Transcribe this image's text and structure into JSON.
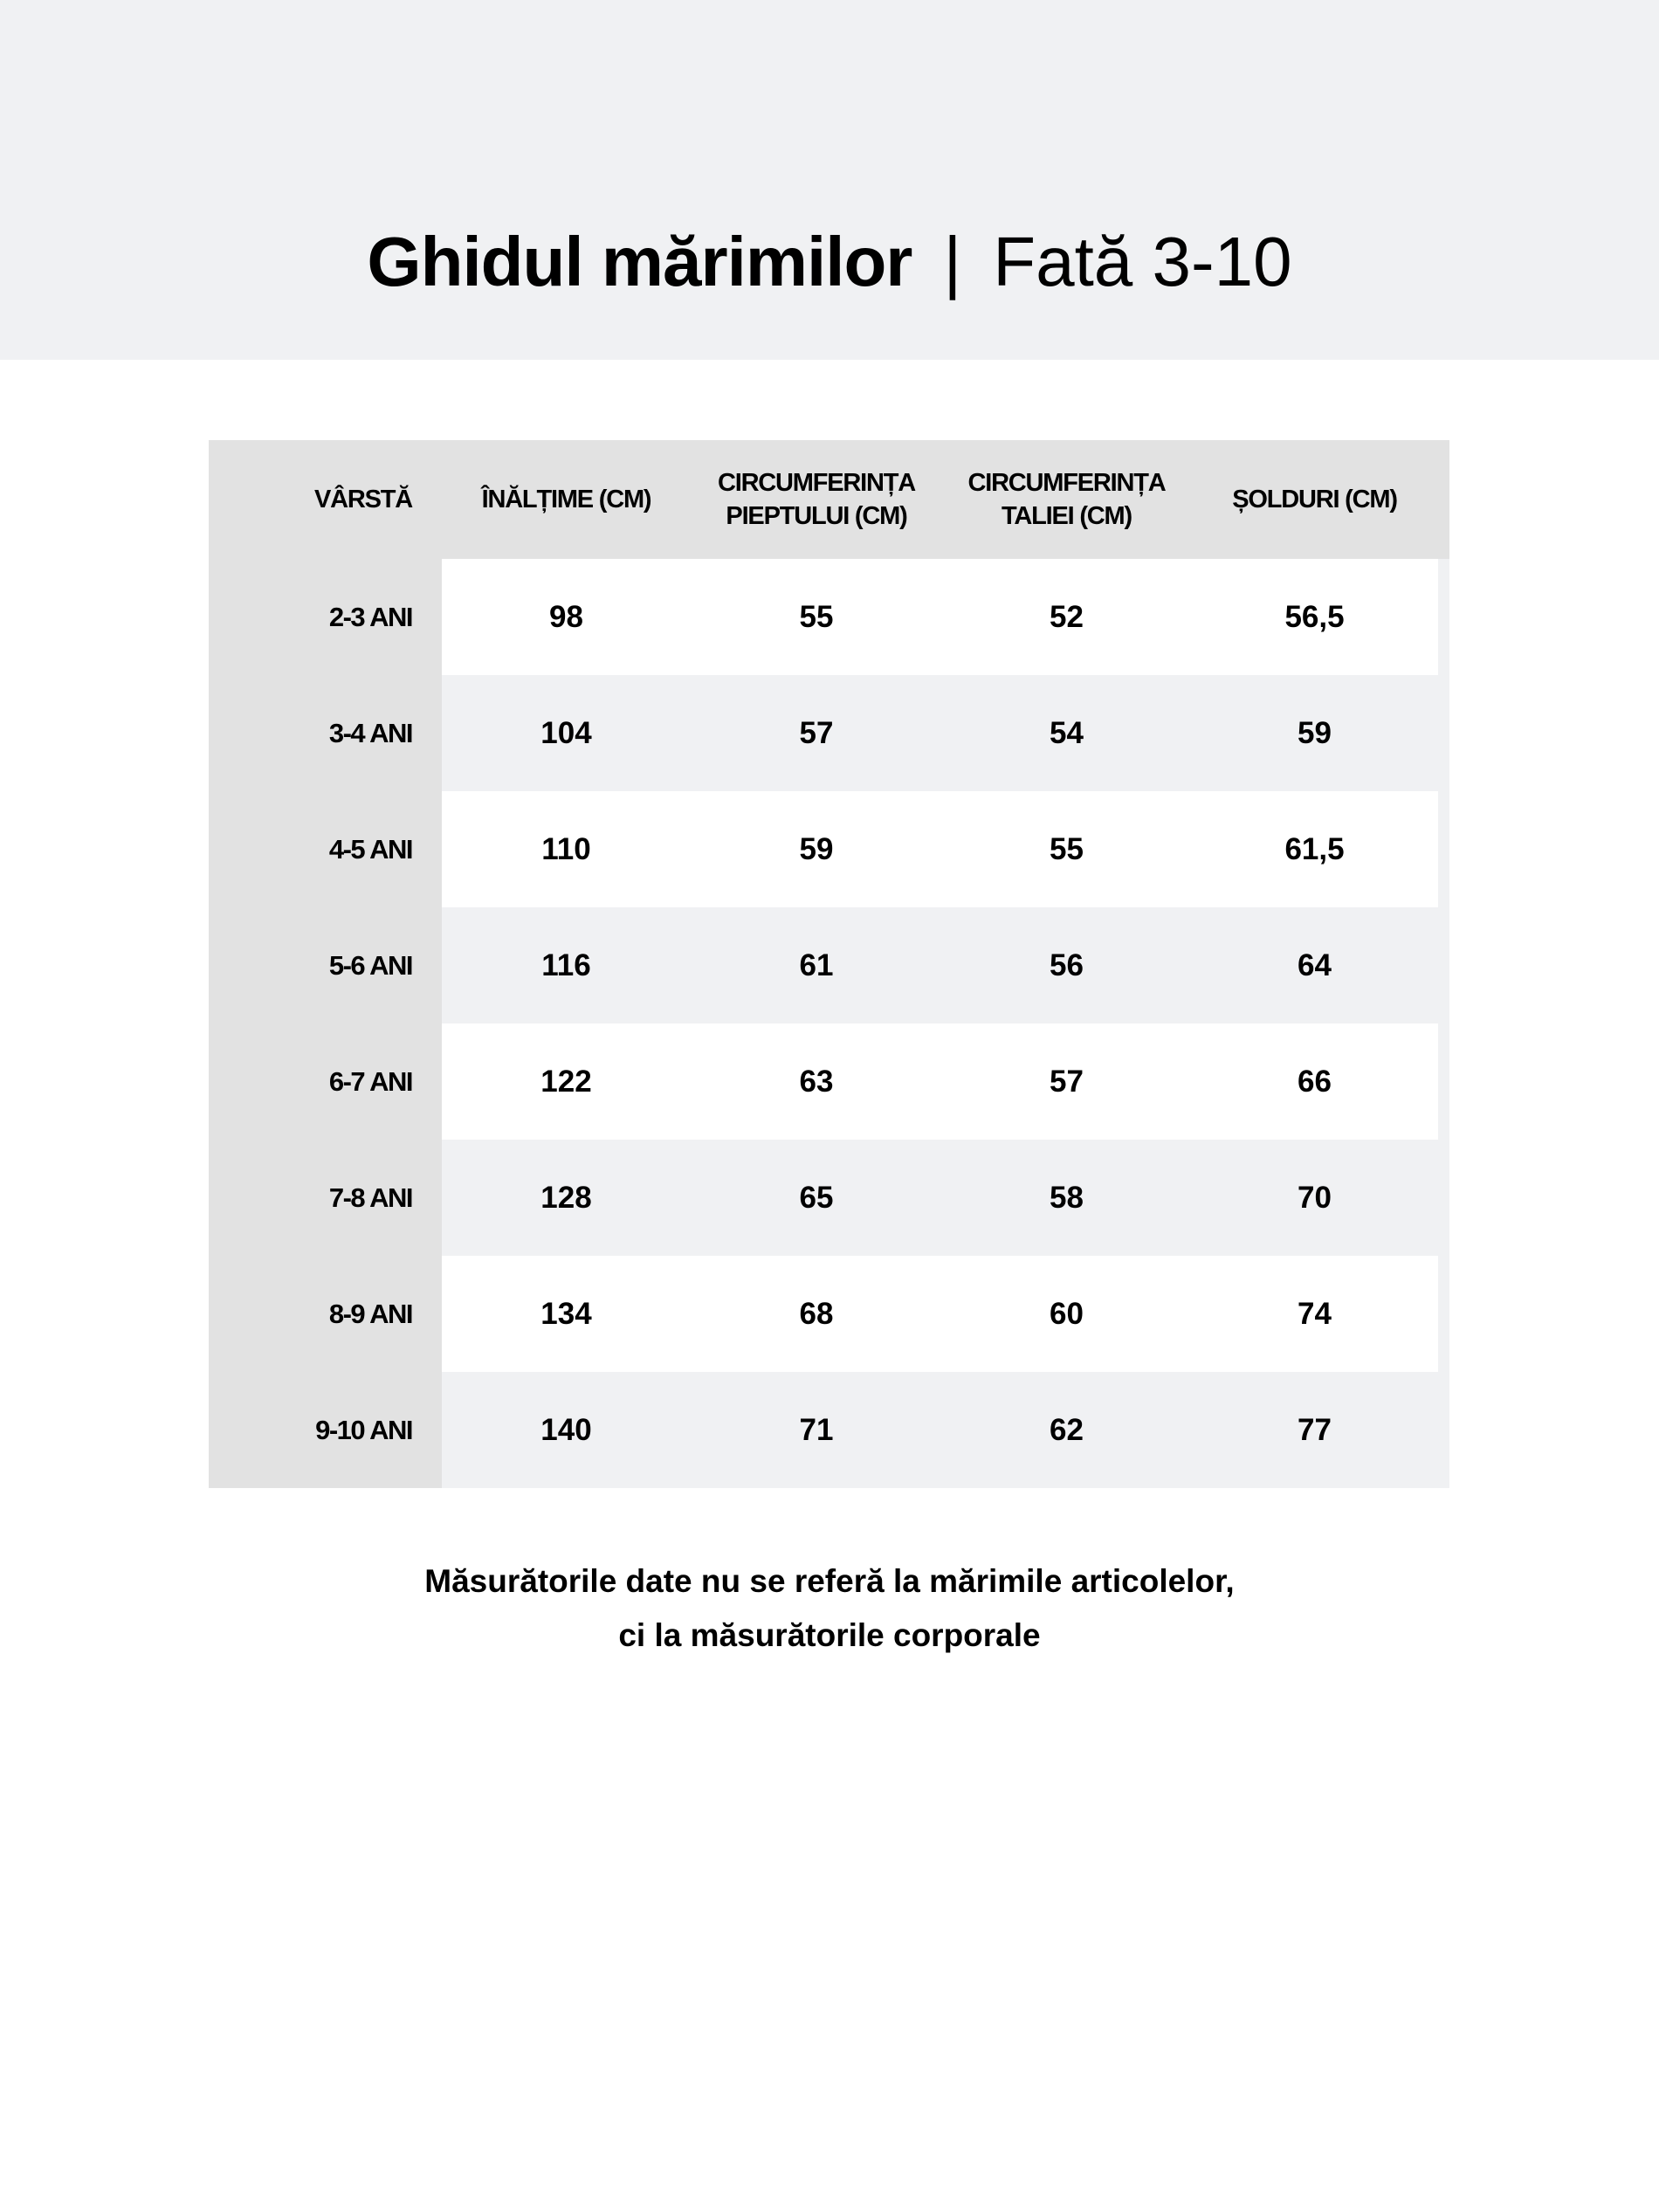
{
  "header": {
    "title": "Ghidul mărimilor",
    "separator": "|",
    "subtitle": "Fată 3-10"
  },
  "table": {
    "columns": [
      {
        "line1": "VÂRSTĂ",
        "line2": ""
      },
      {
        "line1": "ÎNĂLȚIME (CM)",
        "line2": ""
      },
      {
        "line1": "CIRCUMFERINȚA",
        "line2": "PIEPTULUI (CM)"
      },
      {
        "line1": "CIRCUMFERINȚA",
        "line2": "TALIEI (CM)"
      },
      {
        "line1": "ȘOLDURI (CM)",
        "line2": ""
      }
    ],
    "rows": [
      [
        "2-3 ANI",
        "98",
        "55",
        "52",
        "56,5"
      ],
      [
        "3-4 ANI",
        "104",
        "57",
        "54",
        "59"
      ],
      [
        "4-5 ANI",
        "110",
        "59",
        "55",
        "61,5"
      ],
      [
        "5-6 ANI",
        "116",
        "61",
        "56",
        "64"
      ],
      [
        "6-7 ANI",
        "122",
        "63",
        "57",
        "66"
      ],
      [
        "7-8 ANI",
        "128",
        "65",
        "58",
        "70"
      ],
      [
        "8-9 ANI",
        "134",
        "68",
        "60",
        "74"
      ],
      [
        "9-10 ANI",
        "140",
        "71",
        "62",
        "77"
      ]
    ]
  },
  "footer": {
    "line1": "Măsurătorile date nu se referă la mărimile articolelor,",
    "line2": "ci la măsurătorile corporale"
  },
  "colors": {
    "band": "#f0f1f3",
    "header_cell": "#e2e2e2",
    "row_alt": "#f0f1f3",
    "row_white": "#ffffff"
  }
}
